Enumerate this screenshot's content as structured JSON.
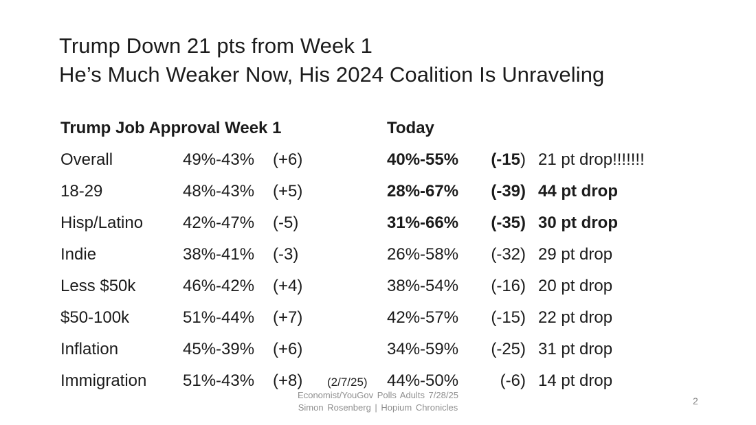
{
  "slide": {
    "title_line1": "Trump Down 21 pts from Week 1",
    "title_line2": "He’s Much Weaker Now, His 2024 Coalition Is Unraveling",
    "page_number": "2"
  },
  "table": {
    "header": {
      "week1_label": "Trump Job Approval Week 1",
      "today_label": "Today"
    },
    "rows": [
      {
        "label": "Overall",
        "week1_range": "49%-43%",
        "week1_diff": "(+6)",
        "week1_note": "",
        "today_range": "40%-55%",
        "today_diff": "(-15",
        "today_diff_close": ")",
        "drop": "21 pt drop!!!!!!!"
      },
      {
        "label": "18-29",
        "week1_range": "48%-43%",
        "week1_diff": "(+5)",
        "week1_note": "",
        "today_range": "28%-67%",
        "today_diff": "(-39)",
        "today_diff_close": "",
        "drop": "44 pt drop"
      },
      {
        "label": "Hisp/Latino",
        "week1_range": "42%-47%",
        "week1_diff": "(-5)",
        "week1_note": "",
        "today_range": "31%-66%",
        "today_diff": "(-35)",
        "today_diff_close": "",
        "drop": "30 pt drop"
      },
      {
        "label": "Indie",
        "week1_range": "38%-41%",
        "week1_diff": "(-3)",
        "week1_note": "",
        "today_range": "26%-58%",
        "today_diff": "(-32)",
        "today_diff_close": "",
        "drop": "29 pt drop"
      },
      {
        "label": "Less $50k",
        "week1_range": "46%-42%",
        "week1_diff": "(+4)",
        "week1_note": "",
        "today_range": "38%-54%",
        "today_diff": "(-16)",
        "today_diff_close": "",
        "drop": "20 pt drop"
      },
      {
        "label": "$50-100k",
        "week1_range": "51%-44%",
        "week1_diff": "(+7)",
        "week1_note": "",
        "today_range": "42%-57%",
        "today_diff": "(-15)",
        "today_diff_close": "",
        "drop": "22 pt drop"
      },
      {
        "label": "Inflation",
        "week1_range": "45%-39%",
        "week1_diff": "(+6)",
        "week1_note": "",
        "today_range": "34%-59%",
        "today_diff": "(-25)",
        "today_diff_close": "",
        "drop": "31 pt drop"
      },
      {
        "label": "Immigration",
        "week1_range": "51%-43%",
        "week1_diff": "(+8)",
        "week1_note": "(2/7/25)",
        "today_range": "44%-50%",
        "today_diff": "(-6)",
        "today_diff_close": "",
        "drop": "14 pt drop"
      }
    ]
  },
  "footer": {
    "source_line": "Economist/YouGov Polls Adults 7/28/25",
    "credit_line": "Simon Rosenberg | Hopium Chronicles"
  },
  "colors": {
    "text": "#1b1b1b",
    "muted": "#8f8f8f",
    "background": "#ffffff"
  }
}
